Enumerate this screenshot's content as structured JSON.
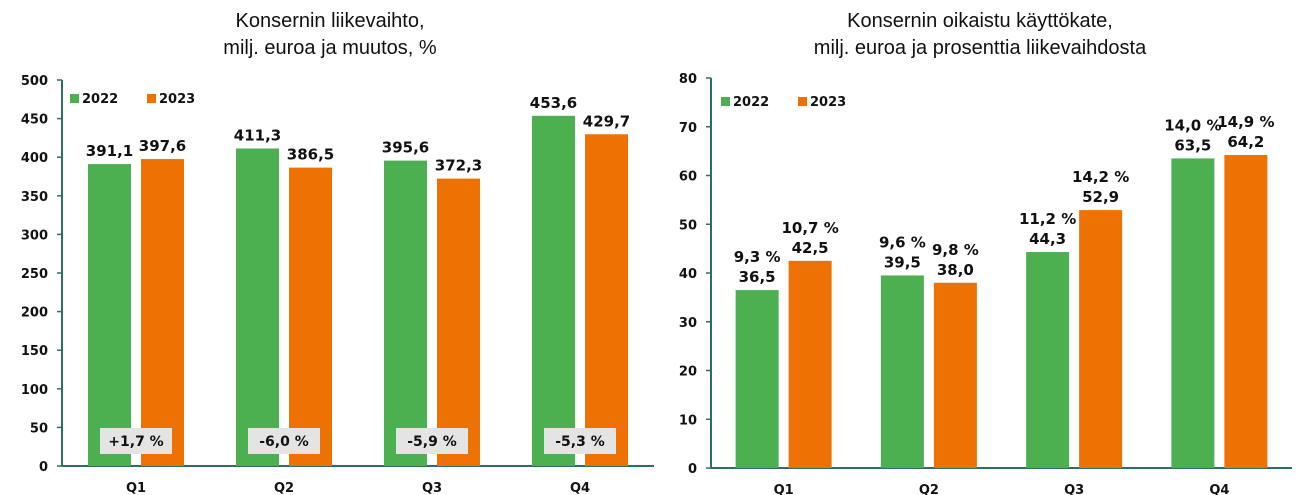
{
  "colors": {
    "series_2022": "#4caf50",
    "series_2023": "#ee7203",
    "axis": "#2f6f63",
    "change_box": "#e4e4e4"
  },
  "chart_data": [
    {
      "type": "bar",
      "title_lines": [
        "Konsernin liikevaihto,",
        "milj. euroa ja muutos, %"
      ],
      "categories": [
        "Q1",
        "Q2",
        "Q3",
        "Q4"
      ],
      "series": [
        {
          "name": "2022",
          "values": [
            391.1,
            411.3,
            395.6,
            453.6
          ],
          "labels": [
            "391,1",
            "411,3",
            "395,6",
            "453,6"
          ]
        },
        {
          "name": "2023",
          "values": [
            397.6,
            386.5,
            372.3,
            429.7
          ],
          "labels": [
            "397,6",
            "386,5",
            "372,3",
            "429,7"
          ]
        }
      ],
      "change_labels": [
        "+1,7 %",
        "-6,0 %",
        "-5,9 %",
        "-5,3 %"
      ],
      "ylim": [
        0,
        500
      ],
      "yticks": [
        0,
        50,
        100,
        150,
        200,
        250,
        300,
        350,
        400,
        450,
        500
      ],
      "grid": false,
      "legend": "top-left"
    },
    {
      "type": "bar",
      "title_lines": [
        "Konsernin oikaistu käyttökate,",
        "milj. euroa ja prosenttia liikevaihdosta"
      ],
      "categories": [
        "Q1",
        "Q2",
        "Q3",
        "Q4"
      ],
      "series": [
        {
          "name": "2022",
          "values": [
            36.5,
            39.5,
            44.3,
            63.5
          ],
          "labels": [
            "36,5",
            "39,5",
            "44,3",
            "63,5"
          ],
          "percent_labels": [
            "9,3 %",
            "9,6 %",
            "11,2 %",
            "14,0 %"
          ]
        },
        {
          "name": "2023",
          "values": [
            42.5,
            38.0,
            52.9,
            64.2
          ],
          "labels": [
            "42,5",
            "38,0",
            "52,9",
            "64,2"
          ],
          "percent_labels": [
            "10,7 %",
            "9,8 %",
            "14,2 %",
            "14,9 %"
          ]
        }
      ],
      "ylim": [
        0,
        80
      ],
      "yticks": [
        0,
        10,
        20,
        30,
        40,
        50,
        60,
        70,
        80
      ],
      "grid": false,
      "legend": "top-left"
    }
  ]
}
